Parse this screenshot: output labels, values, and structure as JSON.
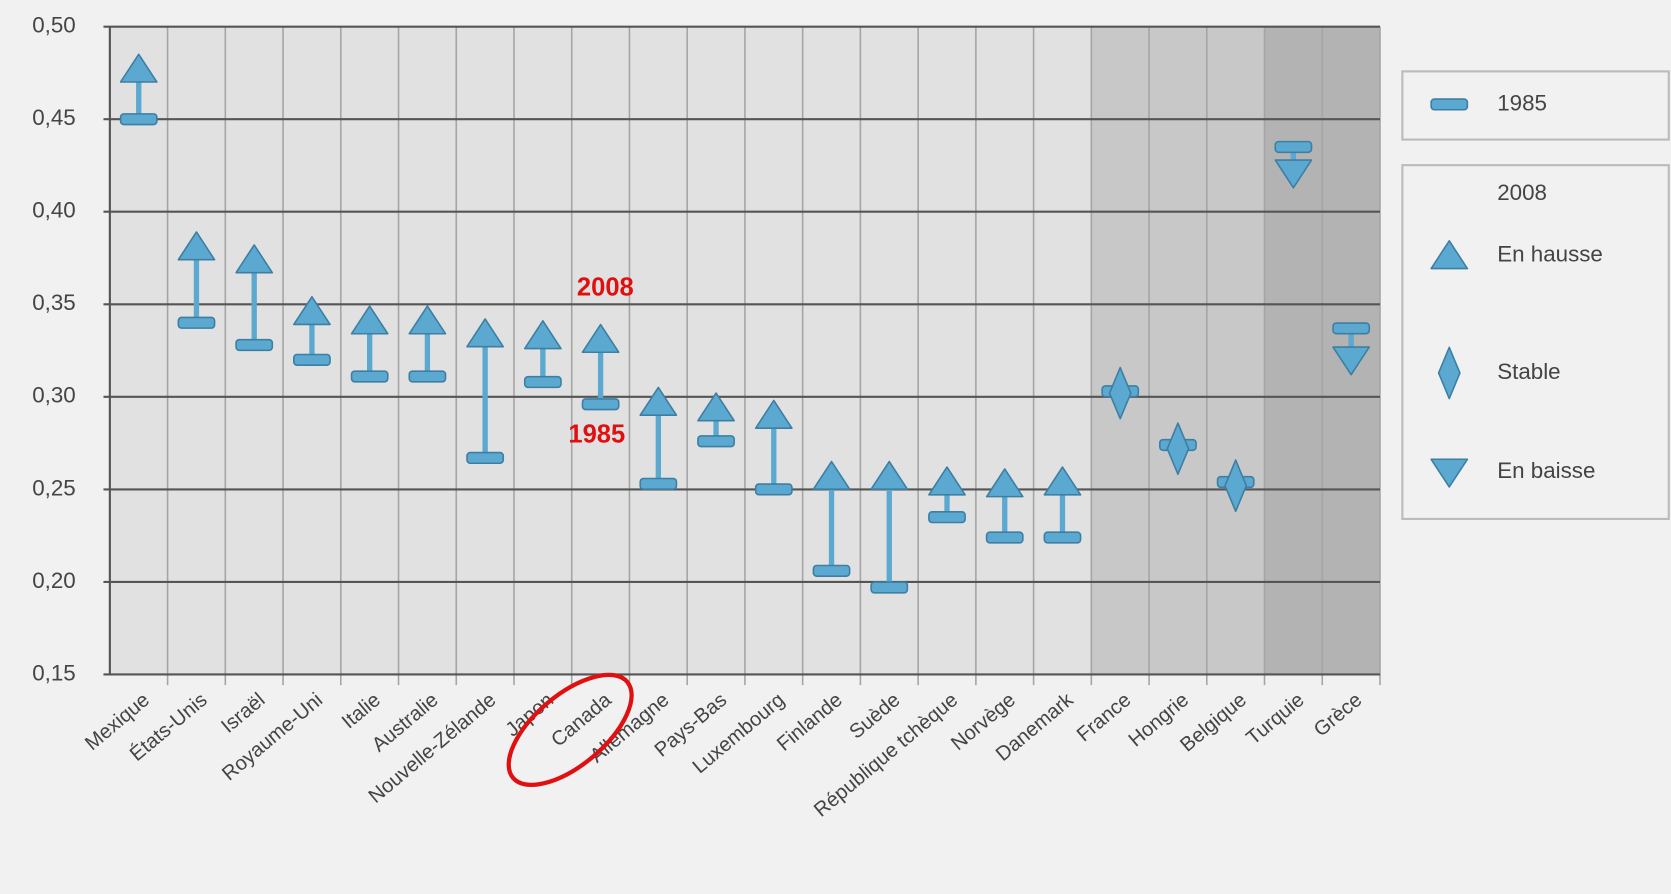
{
  "chart_data": {
    "type": "dumbbell",
    "categories": [
      "Mexique",
      "États-Unis",
      "Israël",
      "Royaume-Uni",
      "Italie",
      "Australie",
      "Nouvelle-Zélande",
      "Japon",
      "Canada",
      "Allemagne",
      "Pays-Bas",
      "Luxembourg",
      "Finlande",
      "Suède",
      "République tchèque",
      "Norvège",
      "Danemark",
      "France",
      "Hongrie",
      "Belgique",
      "Turquie",
      "Grèce"
    ],
    "series": [
      {
        "name": "1985",
        "color": "#5ba8d0",
        "values": [
          0.45,
          0.34,
          0.328,
          0.32,
          0.311,
          0.311,
          0.267,
          0.308,
          0.296,
          0.253,
          0.276,
          0.25,
          0.206,
          0.197,
          0.235,
          0.224,
          0.224,
          0.303,
          0.274,
          0.254,
          0.435,
          0.337
        ]
      },
      {
        "name": "2008",
        "color": "#5ba8d0",
        "values": [
          0.477,
          0.381,
          0.374,
          0.346,
          0.341,
          0.341,
          0.334,
          0.333,
          0.331,
          0.297,
          0.294,
          0.29,
          0.257,
          0.257,
          0.254,
          0.253,
          0.254,
          0.302,
          0.272,
          0.252,
          0.421,
          0.32
        ],
        "markers": [
          "up",
          "up",
          "up",
          "up",
          "up",
          "up",
          "up",
          "up",
          "up",
          "up",
          "up",
          "up",
          "up",
          "up",
          "up",
          "up",
          "up",
          "stable",
          "stable",
          "stable",
          "down",
          "down"
        ]
      }
    ],
    "legend_labels": {
      "up": "En hausse",
      "stable": "Stable",
      "down": "En baisse"
    },
    "ylim": [
      0.15,
      0.5
    ],
    "yticks": [
      {
        "value": 0.15,
        "label": "0,15"
      },
      {
        "value": 0.2,
        "label": "0,20"
      },
      {
        "value": 0.25,
        "label": "0,25"
      },
      {
        "value": 0.3,
        "label": "0,30"
      },
      {
        "value": 0.35,
        "label": "0,35"
      },
      {
        "value": 0.4,
        "label": "0,40"
      },
      {
        "value": 0.45,
        "label": "0,45"
      },
      {
        "value": 0.5,
        "label": "0,50"
      }
    ],
    "grid": true,
    "annotations": [
      {
        "text": "2008"
      },
      {
        "text": "1985"
      }
    ]
  }
}
